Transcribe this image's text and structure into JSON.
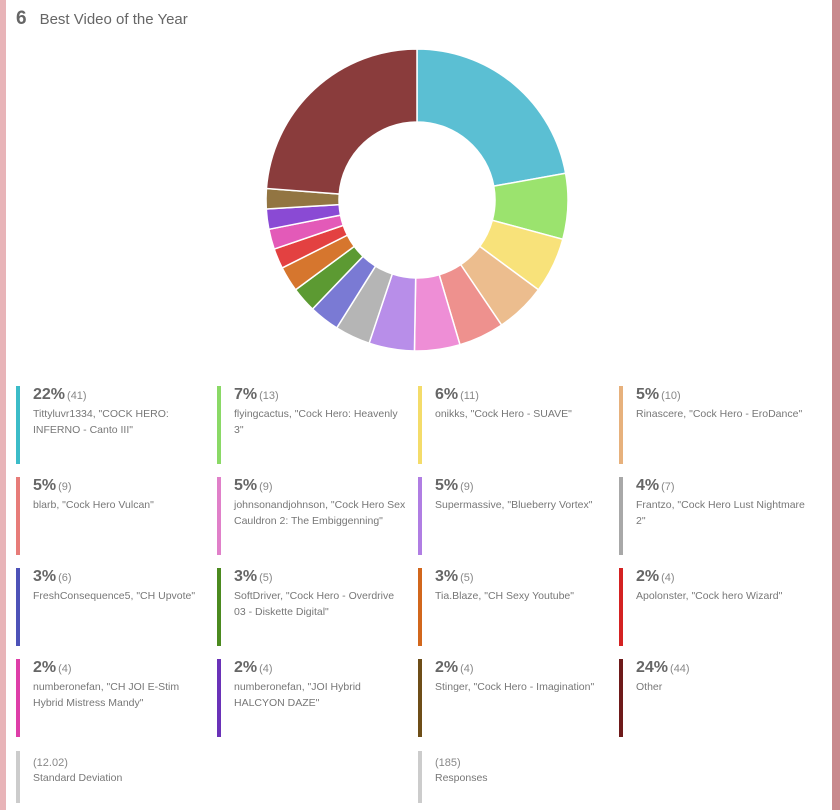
{
  "question": {
    "number": "6",
    "title": "Best Video of the Year"
  },
  "colors": {
    "background": "#ffffff",
    "left_edge": "#e8b4b8",
    "right_edge": "#c98a8e"
  },
  "chart_data": {
    "type": "pie",
    "variant": "donut",
    "title": "Best Video of the Year",
    "slices": [
      {
        "pct": "22%",
        "count": "(41)",
        "value": 41,
        "label": "Tittyluvr1334, \"COCK HERO: INFERNO - Canto III\"",
        "color": "#5bbfd3"
      },
      {
        "pct": "7%",
        "count": "(13)",
        "value": 13,
        "label": "flyingcactus, \"Cock Hero: Heavenly 3\"",
        "color": "#9be36e"
      },
      {
        "pct": "6%",
        "count": "(11)",
        "value": 11,
        "label": "onikks, \"Cock Hero - SUAVE\"",
        "color": "#f8e27a"
      },
      {
        "pct": "5%",
        "count": "(10)",
        "value": 10,
        "label": "Rinascere, \"Cock Hero - EroDance\"",
        "color": "#ecbd8e"
      },
      {
        "pct": "5%",
        "count": "(9)",
        "value": 9,
        "label": "blarb, \"Cock Hero Vulcan\"",
        "color": "#ee918e"
      },
      {
        "pct": "5%",
        "count": "(9)",
        "value": 9,
        "label": "johnsonandjohnson, \"Cock Hero Sex Cauldron 2: The Embiggenning\"",
        "color": "#ee8ed6"
      },
      {
        "pct": "5%",
        "count": "(9)",
        "value": 9,
        "label": "Supermassive, \"Blueberry Vortex\"",
        "color": "#b88ee9"
      },
      {
        "pct": "4%",
        "count": "(7)",
        "value": 7,
        "label": "Frantzo, \"Cock Hero Lust Nightmare 2\"",
        "color": "#b5b5b5"
      },
      {
        "pct": "3%",
        "count": "(6)",
        "value": 6,
        "label": "FreshConsequence5, \"CH Upvote\"",
        "color": "#7a7ad4"
      },
      {
        "pct": "3%",
        "count": "(5)",
        "value": 5,
        "label": "SoftDriver, \"Cock Hero - Overdrive 03 - Diskette Digital\"",
        "color": "#5c9a32"
      },
      {
        "pct": "3%",
        "count": "(5)",
        "value": 5,
        "label": "Tia.Blaze, \"CH Sexy Youtube\"",
        "color": "#d6762e"
      },
      {
        "pct": "2%",
        "count": "(4)",
        "value": 4,
        "label": "Apolonster, \"Cock hero Wizard\"",
        "color": "#e34141"
      },
      {
        "pct": "2%",
        "count": "(4)",
        "value": 4,
        "label": "numberonefan, \"CH JOI E-Stim Hybrid Mistress Mandy\"",
        "color": "#e35ab8"
      },
      {
        "pct": "2%",
        "count": "(4)",
        "value": 4,
        "label": "numberonefan, \"JOI Hybrid HALCYON DAZE\"",
        "color": "#8a4ad4"
      },
      {
        "pct": "2%",
        "count": "(4)",
        "value": 4,
        "label": "Stinger, \"Cock Hero - Imagination\"",
        "color": "#927542"
      },
      {
        "pct": "24%",
        "count": "(44)",
        "value": 44,
        "label": "Other",
        "color": "#8a3c3c"
      }
    ],
    "legend_colors": [
      "#3cbcc8",
      "#8ad966",
      "#f4dc6a",
      "#e7b17c",
      "#e77c79",
      "#e080c9",
      "#b07ee3",
      "#a8a8a8",
      "#4d52b8",
      "#4b8a1f",
      "#d2671c",
      "#d42222",
      "#de3ea8",
      "#6a32b8",
      "#6e4e18",
      "#6e1a1a"
    ]
  },
  "stats": [
    {
      "value": "(12.02)",
      "label": "Standard Deviation"
    },
    {
      "value": "(185)",
      "label": "Responses"
    }
  ]
}
